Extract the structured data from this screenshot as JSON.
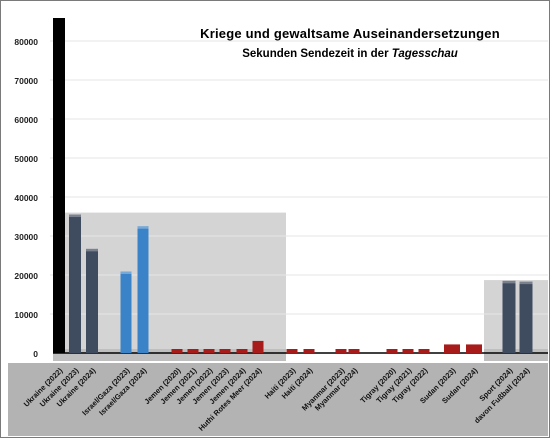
{
  "chart_data": {
    "type": "bar",
    "title": "Kriege und gewaltsame Auseinandersetzungen",
    "subtitle_prefix": "Sekunden Sendezeit  in der ",
    "subtitle_italic": "Tagesschau",
    "xlabel": "",
    "ylabel": "",
    "ylim": [
      0,
      85000
    ],
    "yticks": [
      "0",
      "10000",
      "20000",
      "30000",
      "40000",
      "50000",
      "60000",
      "70000",
      "80000"
    ],
    "grid": true,
    "legend": "none",
    "series": [
      {
        "categories": [
          "Ukraine (2022)",
          "Ukraine (2023)",
          "Ukraine (2024)",
          "Israel/Gaza (2023)",
          "Israel/Gaza (2024)",
          "Jemen (2020)",
          "Jemen (2021)",
          "Jemen (2022)",
          "Jemen (2023)",
          "Jemen (2024)",
          "Huthi Rotes Meer (2024)",
          "Haiti (2023)",
          "Haiti (2024)",
          "Myanmar (2023)",
          "Myanmar (2024)",
          "Tigray (2020)",
          "Tigray (2021)",
          "Tigray (2022)",
          "Sudan (2023)",
          "Sudan (2024)",
          "Sport (2024)",
          "davon Fußball (2024)"
        ],
        "values": [
          86000,
          35500,
          26700,
          20900,
          32500,
          900,
          1000,
          1000,
          1000,
          700,
          3100,
          1000,
          1000,
          700,
          700,
          800,
          800,
          800,
          2200,
          2200,
          18500,
          18300
        ]
      }
    ],
    "colors": {
      "ukraine_bar": "#3f4b5e",
      "ukraine_2022_bar": "#000000",
      "israel_bar": "#3b83c8",
      "small_bar": "#a81b1b",
      "panel_fill": "#d4d4d4",
      "floor_fill": "#bfbfbf"
    }
  }
}
